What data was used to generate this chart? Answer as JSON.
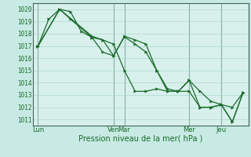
{
  "xlabel": "Pression niveau de la mer( hPa )",
  "bg_color": "#c8eae4",
  "plot_bg_color": "#d8f0ec",
  "line_color": "#1a6b2a",
  "grid_color": "#a8d8cc",
  "day_sep_color": "#446655",
  "ylim": [
    1010.5,
    1020.5
  ],
  "yticks": [
    1011,
    1012,
    1013,
    1014,
    1015,
    1016,
    1017,
    1018,
    1019,
    1020
  ],
  "xlim": [
    0,
    20
  ],
  "day_sep_x": [
    0.5,
    7.5,
    8.5,
    14.5,
    17.5,
    20.0
  ],
  "xtick_positions": [
    0.5,
    7.5,
    8.5,
    14.5,
    17.5,
    20.0
  ],
  "xtick_labels": [
    "Lun",
    "Ven",
    "Mar",
    "Mer",
    "Jeu",
    ""
  ],
  "series1_x": [
    0.5,
    1.5,
    2.5,
    3.5,
    4.5,
    5.5,
    6.5,
    7.5,
    8.5,
    9.5,
    10.5,
    11.5,
    12.5,
    13.5,
    14.5,
    15.5,
    16.5,
    17.5,
    18.5,
    19.5
  ],
  "series1_y": [
    1017.0,
    1019.2,
    1020.0,
    1019.8,
    1018.2,
    1017.7,
    1017.5,
    1016.2,
    1017.8,
    1017.5,
    1017.15,
    1015.0,
    1013.3,
    1013.3,
    1014.2,
    1013.3,
    1012.5,
    1012.2,
    1012.0,
    1013.2
  ],
  "series2_x": [
    0.5,
    2.5,
    3.5,
    5.5,
    6.5,
    7.5,
    8.5,
    9.5,
    10.5,
    11.5,
    12.5,
    13.5,
    14.5,
    15.5,
    16.5,
    17.5,
    18.5,
    19.5
  ],
  "series2_y": [
    1017.0,
    1020.0,
    1019.2,
    1017.7,
    1016.5,
    1016.2,
    1017.75,
    1017.15,
    1016.5,
    1015.0,
    1013.5,
    1013.3,
    1013.3,
    1012.0,
    1012.0,
    1012.2,
    1010.8,
    1013.2
  ],
  "series3_x": [
    0.5,
    2.5,
    5.5,
    6.5,
    7.5,
    8.5,
    9.5,
    10.5,
    11.5,
    12.5,
    13.5,
    14.5,
    15.5,
    16.5,
    17.5,
    18.5,
    19.5
  ],
  "series3_y": [
    1017.0,
    1020.0,
    1017.8,
    1017.5,
    1017.15,
    1015.0,
    1013.3,
    1013.3,
    1013.5,
    1013.3,
    1013.3,
    1014.2,
    1012.0,
    1012.0,
    1012.2,
    1010.8,
    1013.2
  ]
}
